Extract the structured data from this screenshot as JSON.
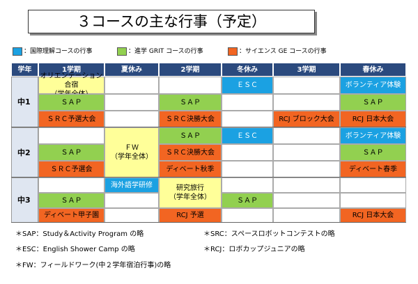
{
  "title": "３コースの主な行事（予定）",
  "legend": [
    "：国際理解コースの行事",
    "：進学 GRIT コースの行事",
    "：サイエンス GE コースの行事"
  ],
  "table": {
    "header": [
      "学年",
      "1学期",
      "夏休み",
      "2学期",
      "冬休み",
      "3学期",
      "春休み"
    ],
    "rows": [
      {
        "grade": "中1",
        "events": [
          [
            "オリエンテーション合宿",
            "（学年全体）"
          ],
          "ＥＳＣ",
          "ボランティア体験",
          "ＳＡＰ",
          "ＳＡＰ",
          "ＳＡＰ",
          "ＳＲＣ予選大会",
          "ＳＲＣ決勝大会",
          "RCJ ブロック大会",
          "RCJ 日本大会"
        ]
      },
      {
        "grade": "中2",
        "events": [
          "ＳＡＰ",
          [
            "ＦＷ",
            "（学年全体）"
          ],
          "ＳＡＰ",
          "ＥＳＣ",
          "ボランティア体験",
          "ＳＲＣ決勝大会",
          "ＳＡＰ",
          "ＳＲＣ予選会",
          "ディベート秋季",
          "ディベート春季"
        ]
      },
      {
        "grade": "中3",
        "events": [
          "海外語学研修",
          [
            "研究旅行",
            "（学年全体）"
          ],
          "ＳＡＰ",
          "ＳＡＰ",
          "ディベート甲子園",
          "RCJ 予選",
          "RCJ 日本大会"
        ]
      }
    ]
  },
  "notes": [
    "＊SAP：Study＆Activity Program の略",
    "＊SRC：スペースロボットコンテストの略",
    "＊ESC：English Shower Camp の略",
    "＊RCJ：ロボカップジュニアの略",
    "＊FW：フィールドワーク(中２学年宿泊行事)の略"
  ]
}
